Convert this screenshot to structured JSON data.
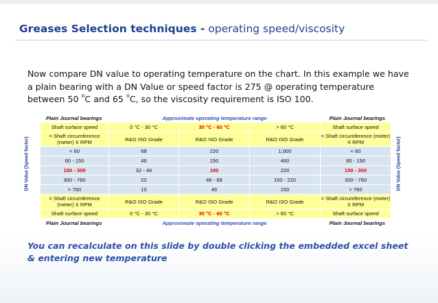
{
  "slide": {
    "title_bold": "Greases Selection techniques -",
    "title_rest": "operating speed/viscosity"
  },
  "intro": {
    "line1": "Now compare DN value to operating temperature on the chart.  In this example we have a plain bearing with a DN Value or speed factor is 275 @ operating temperature between 50 ",
    "sup1": "o",
    "mid": "C and 65 ",
    "sup2": "o",
    "end": "C, so the viscosity requirement is ISO 100."
  },
  "chart": {
    "side_label": "DN Value (Speed factor)",
    "header_left": "Plain Journal bearings",
    "header_mid": "Approximate operating temperature range",
    "header_right": "Plain Journal bearings",
    "top": {
      "left": "Shaft surface speed",
      "t1": "0 °C - 30 °C",
      "t2": "30 °C - 60 °C",
      "t3": "> 60 °C",
      "right": "Shaft surface speed"
    },
    "grade_row_top": {
      "left": "= Shaft circumference (meter) X RPM",
      "g1": "R&O ISO Grade",
      "g2": "R&O ISO Grade",
      "g3": "R&O ISO Grade",
      "right": "= Shaft circumference (meter) X RPM"
    },
    "rows": [
      {
        "dn": "< 60",
        "a": "68",
        "b": "220",
        "c": "1,000",
        "dn_r": "< 60"
      },
      {
        "dn": "60 - 150",
        "a": "46",
        "b": "150",
        "c": "460",
        "dn_r": "60 - 150"
      },
      {
        "dn": "150 - 300",
        "a": "32 - 46",
        "b": "100",
        "c": "220",
        "dn_r": "150 - 300"
      },
      {
        "dn": "300 - 760",
        "a": "22",
        "b": "46 - 68",
        "c": "150 - 220",
        "dn_r": "300 - 760"
      },
      {
        "dn": "> 760",
        "a": "10",
        "b": "46",
        "c": "150",
        "dn_r": "> 760"
      }
    ],
    "grade_row_bottom": {
      "left": "= Shaft circumference (meter) X RPM",
      "g1": "R&O ISO Grade",
      "g2": "R&O ISO Grade",
      "g3": "R&O ISO Grade",
      "right": "= Shaft circumference (meter) X RPM"
    },
    "bottom": {
      "left": "Shaft surface speed",
      "t1": "0 °C - 30 °C",
      "t2": "30 °C - 60 °C",
      "t3": "> 60 °C",
      "right": "Shaft surface speed"
    },
    "footer_left": "Plain Journal bearings",
    "footer_mid": "Approximate operating temperature range",
    "footer_right": "Plain Journal bearings"
  },
  "footer_note": "You can recalculate on this slide by double clicking the embedded excel sheet & entering new temperature",
  "colors": {
    "title_blue": "#1f3f8f",
    "accent_blue": "#2e4fa8",
    "highlight_red": "#e00000",
    "yellow_cell": "#ffff99",
    "gray_cell": "#d8e4f0"
  }
}
